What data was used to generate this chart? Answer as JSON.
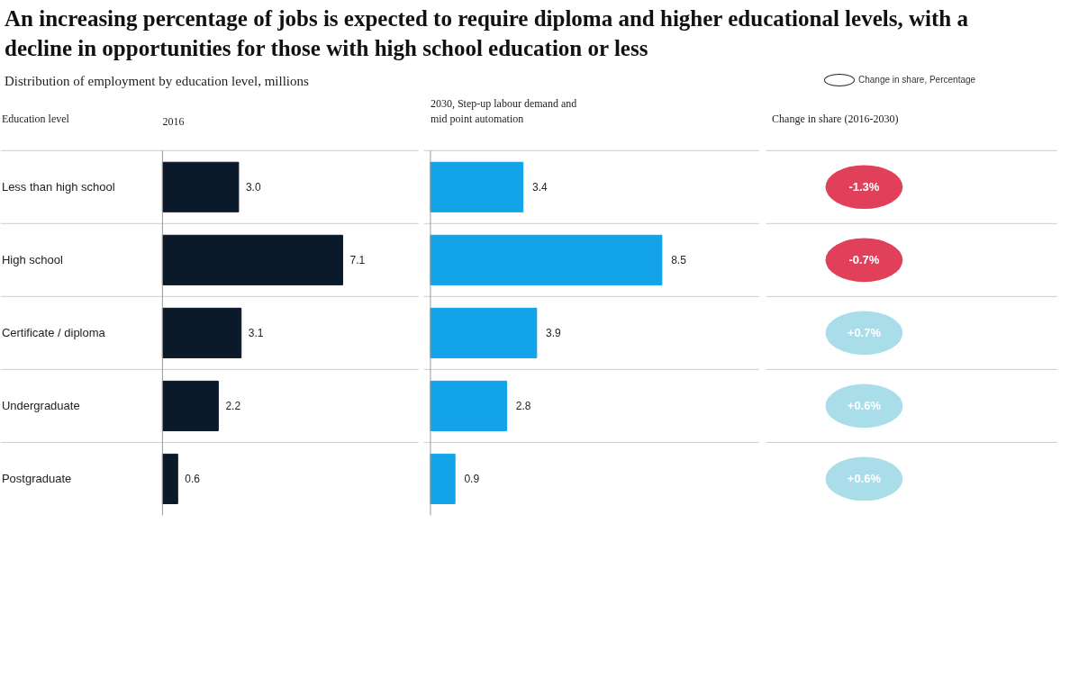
{
  "chart_data": [
    {
      "type": "bar",
      "orientation": "horizontal",
      "title": "An increasing percentage of jobs is expected to require diploma and higher educational levels, with a decline in opportunities for those with high school education or less",
      "subtitle": "Distribution of employment by education level, millions",
      "ylabel": "Education level",
      "xlabel": "2016",
      "categories": [
        "Less than high school",
        "High school",
        "Certificate / diploma",
        "Undergraduate",
        "Postgraduate"
      ],
      "values": [
        3.0,
        7.1,
        3.1,
        2.2,
        0.6
      ],
      "value_labels": [
        "3.0",
        "7.1",
        "3.1",
        "2.2",
        "0.6"
      ],
      "color": "#0b1a2a",
      "grid": "y"
    },
    {
      "type": "bar",
      "orientation": "horizontal",
      "xlabel": "2030, Step-up labour demand and mid point automation",
      "categories": [
        null,
        null,
        null,
        null,
        null
      ],
      "values": [
        3.4,
        8.5,
        3.9,
        2.8,
        0.9
      ],
      "value_labels": [
        "3.4",
        "8.5",
        "3.9",
        "2.8",
        "0.9"
      ],
      "color": "#12a3e8",
      "grid": "y"
    },
    {
      "type": "other",
      "xlabel": "Change in share (2016-2030)",
      "legend_title": "Change in share, Percentage",
      "annotations": [
        "-1.3%",
        "-0.7%",
        "+0.7%",
        "+0.6%",
        "+0.6%"
      ],
      "colors": [
        "#e0405a",
        "#e0405a",
        "#a9dde9",
        "#a9dde9",
        "#a9dde9"
      ]
    }
  ]
}
